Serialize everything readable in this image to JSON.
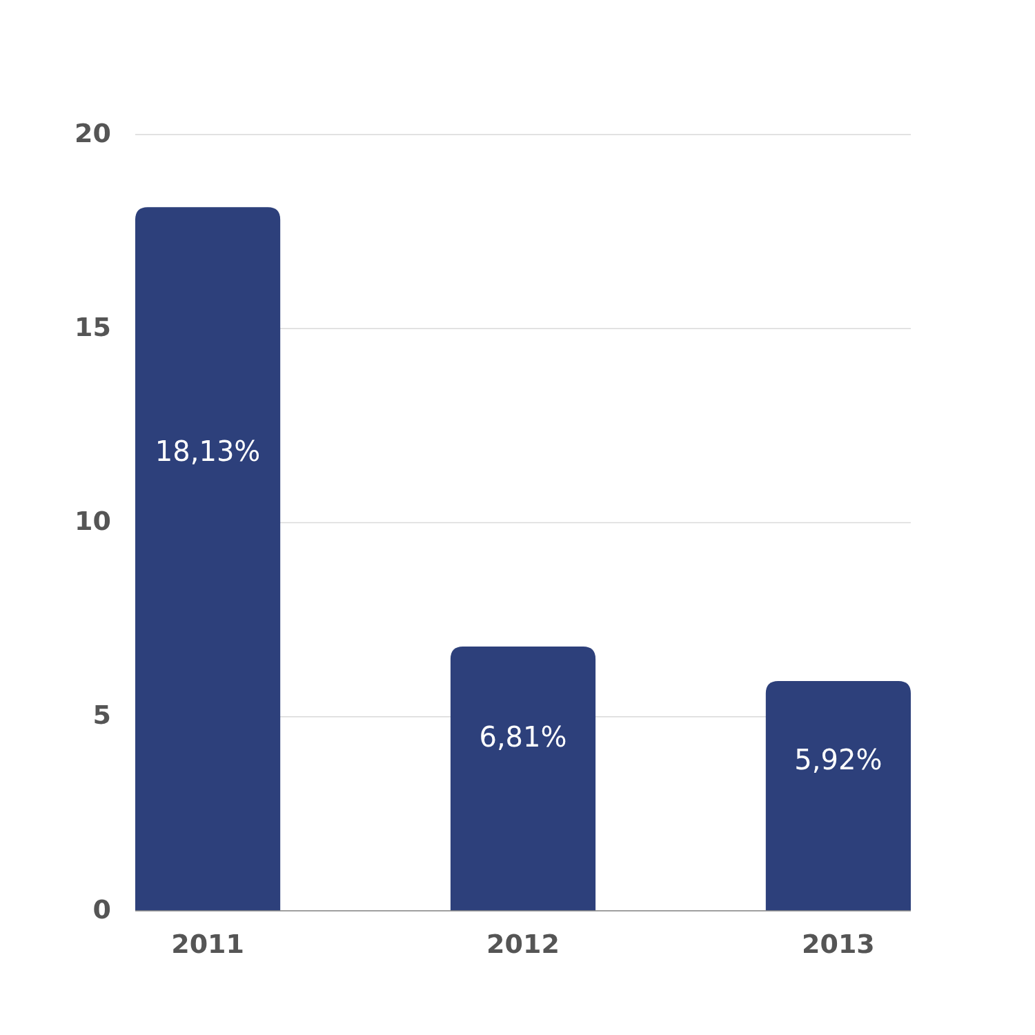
{
  "chart_data": {
    "type": "bar",
    "categories": [
      "2011",
      "2012",
      "2013"
    ],
    "values": [
      18.13,
      6.81,
      5.92
    ],
    "value_labels": [
      "18,13%",
      "6,81%",
      "5,92%"
    ],
    "color": "#2d407b",
    "ylim": [
      0,
      20
    ],
    "yticks": [
      0,
      5,
      10,
      15,
      20
    ],
    "grid": "y"
  }
}
